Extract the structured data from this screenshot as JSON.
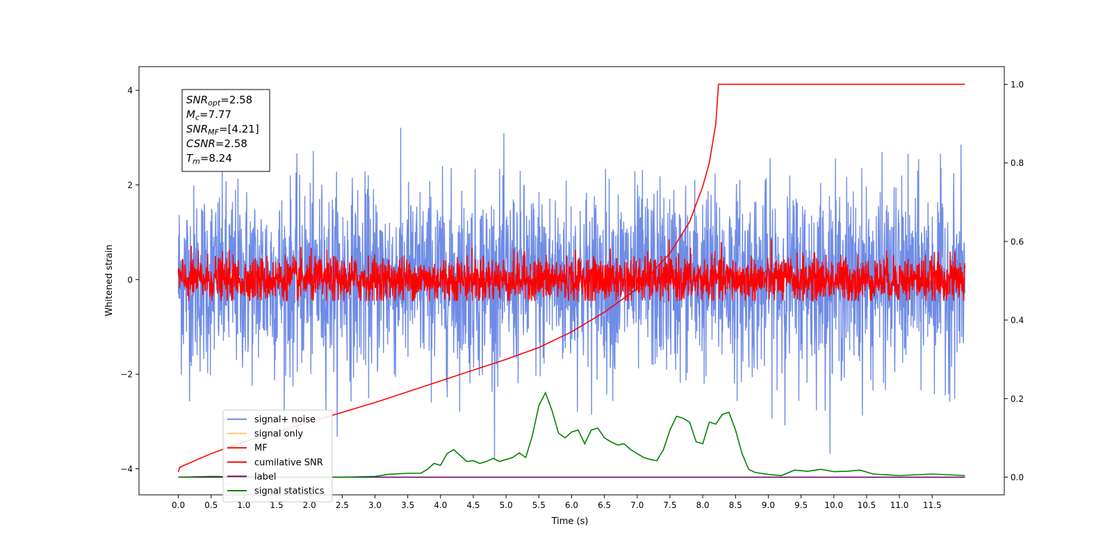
{
  "chart_data": {
    "type": "line",
    "xlabel": "Time (s)",
    "ylabel": "Whitened strain",
    "xlim": [
      -0.6,
      12.6
    ],
    "ylim": [
      -4.55,
      4.5
    ],
    "y2lim": [
      -0.045,
      1.045
    ],
    "x_ticks": [
      "0.0",
      "0.5",
      "1.0",
      "1.5",
      "2.0",
      "2.5",
      "3.0",
      "3.5",
      "4.0",
      "4.5",
      "5.0",
      "5.5",
      "6.0",
      "6.5",
      "7.0",
      "7.5",
      "8.0",
      "8.5",
      "9.0",
      "9.5",
      "10.0",
      "10.5",
      "11.0",
      "11.5"
    ],
    "y_ticks": [
      "4",
      "2",
      "0",
      "−2",
      "−4"
    ],
    "y2_ticks": [
      "1.0",
      "0.8",
      "0.6",
      "0.4",
      "0.2",
      "0.0"
    ],
    "legend_position": "lower-left",
    "colors": {
      "signal_noise": "#6f8ce6",
      "signal_only": "#ffc96b",
      "mf": "#ff0000",
      "cumulative_snr": "#ff0000",
      "label": "#6a006a",
      "signal_statistics": "#008000"
    },
    "annotation": {
      "lines": [
        {
          "main": "SNR",
          "sub": "opt",
          "rest": "=2.58"
        },
        {
          "main": "M",
          "sub": "c",
          "rest": "=7.77"
        },
        {
          "main": "SNR",
          "sub": "MF",
          "rest": "=[4.21]"
        },
        {
          "main": "CSNR",
          "sub": "",
          "rest": "=2.58"
        },
        {
          "main": "T",
          "sub": "m",
          "rest": "=8.24"
        }
      ]
    },
    "series": [
      {
        "name": "signal+ noise",
        "axis": "left",
        "t_range": [
          0,
          12
        ],
        "amplitude_envelope": [
          -3.8,
          4.1
        ]
      },
      {
        "name": "signal only",
        "axis": "left",
        "t_range": [
          0,
          12
        ],
        "values": []
      },
      {
        "name": "MF",
        "axis": "left",
        "t_range": [
          0,
          12
        ],
        "amplitude_envelope": [
          -0.45,
          0.85
        ]
      },
      {
        "name": "cumilative SNR",
        "axis": "right",
        "x": [
          0.0,
          0.02,
          0.5,
          1.0,
          2.0,
          3.0,
          4.0,
          5.0,
          5.5,
          6.0,
          6.5,
          7.0,
          7.5,
          7.8,
          8.0,
          8.1,
          8.2,
          8.24,
          9.0,
          10.0,
          11.0,
          12.0
        ],
        "y": [
          0.013,
          0.025,
          0.06,
          0.09,
          0.14,
          0.19,
          0.245,
          0.3,
          0.33,
          0.37,
          0.42,
          0.48,
          0.57,
          0.65,
          0.74,
          0.8,
          0.9,
          1.0,
          1.0,
          1.0,
          1.0,
          1.0
        ]
      },
      {
        "name": "label",
        "axis": "right",
        "x": [
          0.0,
          12.0
        ],
        "y": [
          0.0,
          0.0
        ]
      },
      {
        "name": "signal statistics",
        "axis": "right",
        "x": [
          0.0,
          0.5,
          1.0,
          1.5,
          2.0,
          2.5,
          3.0,
          3.2,
          3.5,
          3.7,
          3.8,
          3.9,
          4.0,
          4.1,
          4.2,
          4.3,
          4.4,
          4.5,
          4.6,
          4.7,
          4.8,
          4.9,
          5.0,
          5.1,
          5.2,
          5.3,
          5.4,
          5.5,
          5.6,
          5.7,
          5.8,
          5.9,
          6.0,
          6.1,
          6.2,
          6.3,
          6.4,
          6.5,
          6.6,
          6.7,
          6.8,
          6.9,
          7.0,
          7.1,
          7.2,
          7.3,
          7.4,
          7.5,
          7.6,
          7.7,
          7.8,
          7.9,
          8.0,
          8.1,
          8.2,
          8.3,
          8.4,
          8.5,
          8.6,
          8.7,
          8.8,
          9.0,
          9.2,
          9.4,
          9.6,
          9.8,
          10.0,
          10.2,
          10.4,
          10.6,
          11.0,
          11.5,
          12.0
        ],
        "y": [
          0.0,
          0.002,
          0.001,
          0.0,
          0.0,
          0.0,
          0.002,
          0.007,
          0.01,
          0.01,
          0.02,
          0.035,
          0.03,
          0.06,
          0.07,
          0.055,
          0.04,
          0.042,
          0.035,
          0.04,
          0.048,
          0.04,
          0.045,
          0.05,
          0.062,
          0.05,
          0.105,
          0.182,
          0.215,
          0.17,
          0.112,
          0.1,
          0.115,
          0.12,
          0.085,
          0.12,
          0.125,
          0.1,
          0.09,
          0.082,
          0.085,
          0.07,
          0.06,
          0.05,
          0.045,
          0.042,
          0.07,
          0.12,
          0.155,
          0.15,
          0.14,
          0.09,
          0.085,
          0.14,
          0.135,
          0.16,
          0.165,
          0.12,
          0.06,
          0.02,
          0.012,
          0.007,
          0.004,
          0.018,
          0.015,
          0.02,
          0.014,
          0.015,
          0.018,
          0.008,
          0.004,
          0.008,
          0.004
        ]
      }
    ]
  }
}
